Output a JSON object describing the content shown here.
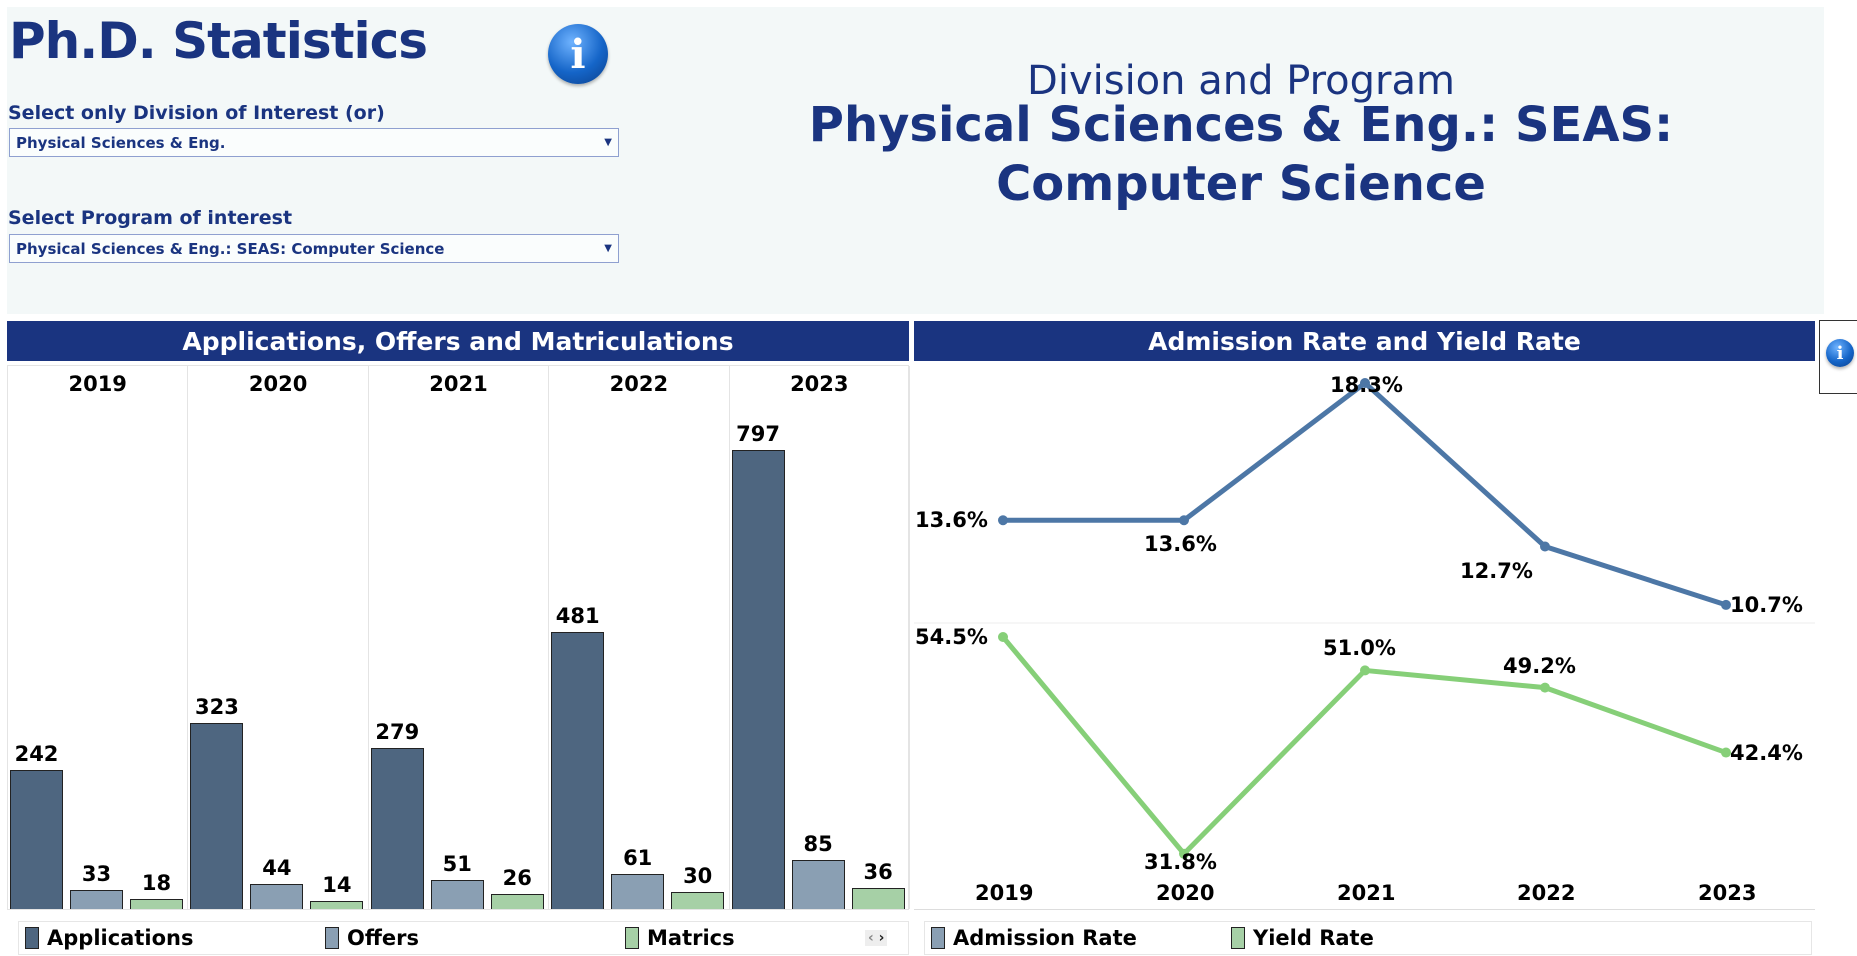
{
  "header": {
    "title": "Ph.D. Statistics",
    "division_label": "Select only Division of Interest (or)",
    "division_value": "Physical Sciences & Eng.",
    "program_label": "Select Program of interest",
    "program_value": "Physical Sciences & Eng.: SEAS: Computer Science",
    "right_caption": "Division and Program",
    "right_title": "Physical Sciences & Eng.: SEAS: Computer Science",
    "info_icon": "info-icon"
  },
  "colors": {
    "header_bg": "#1a3480",
    "applications": "#4e6680",
    "offers": "#8a9fb3",
    "matrics": "#a6d0a6",
    "admission": "#4d77a6",
    "yield": "#86cf78"
  },
  "chart_data": [
    {
      "type": "bar",
      "title": "Applications, Offers and Matriculations",
      "categories": [
        "2019",
        "2020",
        "2021",
        "2022",
        "2023"
      ],
      "series": [
        {
          "name": "Applications",
          "values": [
            242,
            323,
            279,
            481,
            797
          ]
        },
        {
          "name": "Offers",
          "values": [
            33,
            44,
            51,
            61,
            85
          ]
        },
        {
          "name": "Matrics",
          "values": [
            18,
            14,
            26,
            30,
            36
          ]
        }
      ],
      "legend": "bottom"
    },
    {
      "type": "line",
      "title": "Admission Rate and Yield Rate",
      "categories": [
        "2019",
        "2020",
        "2021",
        "2022",
        "2023"
      ],
      "series": [
        {
          "name": "Admission Rate",
          "values": [
            13.6,
            13.6,
            18.3,
            12.7,
            10.7
          ],
          "labels": [
            "13.6%",
            "13.6%",
            "18.3%",
            "12.7%",
            "10.7%"
          ]
        },
        {
          "name": "Yield Rate",
          "values": [
            54.5,
            31.8,
            51.0,
            49.2,
            42.4
          ],
          "labels": [
            "54.5%",
            "31.8%",
            "51.0%",
            "49.2%",
            "42.4%"
          ]
        }
      ],
      "legend": "bottom"
    }
  ]
}
